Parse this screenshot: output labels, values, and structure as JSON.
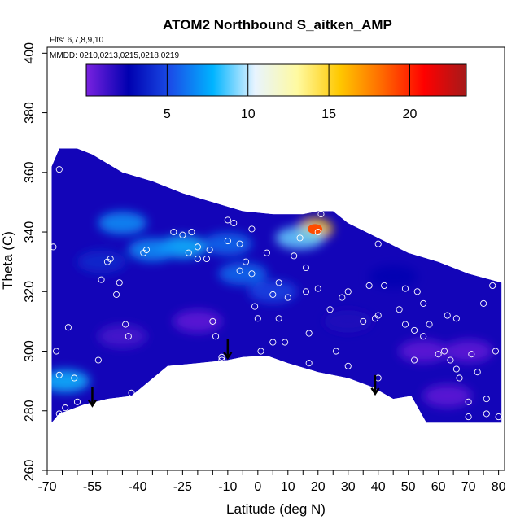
{
  "chart_data": {
    "type": "heatmap",
    "title": "ATOM2 Northbound S_aitken_AMP",
    "note_flights": "Flts: 6,7,8,9,10",
    "note_dates": "MMDD: 0210,0213,0215,0218,0219",
    "xlabel": "Latitude (deg N)",
    "ylabel": "Theta (C)",
    "xlim": [
      -70,
      82
    ],
    "ylim": [
      260,
      402
    ],
    "x_ticks": [
      -70,
      -55,
      -40,
      -25,
      -10,
      0,
      10,
      20,
      30,
      40,
      50,
      60,
      70,
      80
    ],
    "y_ticks": [
      260,
      280,
      300,
      320,
      340,
      360,
      380,
      400
    ],
    "colorbar": {
      "range": [
        0,
        23.5
      ],
      "ticks": [
        5,
        10,
        15,
        20
      ],
      "colors": [
        "#7a22e0",
        "#0000b0",
        "#1a4ee8",
        "#00b4ff",
        "#e8f4ff",
        "#fffaa0",
        "#ffc800",
        "#ff6a00",
        "#ff0000",
        "#a51a1a"
      ]
    },
    "envelope": {
      "top": [
        [
          -68.5,
          362
        ],
        [
          -66,
          368
        ],
        [
          -60,
          368
        ],
        [
          -55,
          366
        ],
        [
          -45,
          360
        ],
        [
          -35,
          357
        ],
        [
          -25,
          353
        ],
        [
          -15,
          350
        ],
        [
          -5,
          347
        ],
        [
          5,
          346
        ],
        [
          15,
          346
        ],
        [
          20,
          347
        ],
        [
          25,
          347
        ],
        [
          30,
          343
        ],
        [
          40,
          338
        ],
        [
          50,
          333
        ],
        [
          60,
          330
        ],
        [
          70,
          326
        ],
        [
          81,
          323
        ]
      ],
      "bottom": [
        [
          81,
          276
        ],
        [
          56,
          276
        ],
        [
          51,
          285
        ],
        [
          45,
          284
        ],
        [
          38,
          288
        ],
        [
          30,
          291
        ],
        [
          20,
          293
        ],
        [
          10,
          296
        ],
        [
          3,
          298.5
        ],
        [
          -5,
          298
        ],
        [
          -10,
          297
        ],
        [
          -20,
          296
        ],
        [
          -30,
          295
        ],
        [
          -42,
          285
        ],
        [
          -50,
          284
        ],
        [
          -58,
          282
        ],
        [
          -66,
          279
        ],
        [
          -68.5,
          276
        ]
      ]
    },
    "field_blobs": [
      {
        "lat": 19,
        "theta": 341,
        "value": 15.5
      },
      {
        "lat": 14,
        "theta": 338,
        "value": 9
      },
      {
        "lat": -25,
        "theta": 335,
        "value": 8
      },
      {
        "lat": -35,
        "theta": 334,
        "value": 7
      },
      {
        "lat": -10,
        "theta": 336,
        "value": 6
      },
      {
        "lat": -45,
        "theta": 343,
        "value": 7
      },
      {
        "lat": -64,
        "theta": 290,
        "value": 8
      },
      {
        "lat": -5,
        "theta": 326,
        "value": 6
      },
      {
        "lat": 5,
        "theta": 320,
        "value": 5
      },
      {
        "lat": -52,
        "theta": 330,
        "value": 4
      },
      {
        "lat": -20,
        "theta": 310,
        "value": 0.5
      },
      {
        "lat": 55,
        "theta": 300,
        "value": 0.5
      },
      {
        "lat": 70,
        "theta": 300,
        "value": 0.5
      },
      {
        "lat": 30,
        "theta": 310,
        "value": 2
      },
      {
        "lat": 63,
        "theta": 285,
        "value": 0.5
      },
      {
        "lat": -45,
        "theta": 305,
        "value": 1
      },
      {
        "lat": 45,
        "theta": 325,
        "value": 2.5
      }
    ],
    "samples": [
      [
        -66,
        361
      ],
      [
        -68,
        335
      ],
      [
        -67,
        300
      ],
      [
        -66,
        292
      ],
      [
        -61,
        291
      ],
      [
        -60,
        283
      ],
      [
        -64,
        281
      ],
      [
        -66,
        279
      ],
      [
        -63,
        308
      ],
      [
        -53,
        297
      ],
      [
        -52,
        324
      ],
      [
        -50,
        330
      ],
      [
        -49,
        331
      ],
      [
        -47,
        319
      ],
      [
        -46,
        323
      ],
      [
        -44,
        309
      ],
      [
        -43,
        305
      ],
      [
        -42,
        286
      ],
      [
        -38,
        333
      ],
      [
        -37,
        334
      ],
      [
        -28,
        340
      ],
      [
        -25,
        339
      ],
      [
        -22,
        340
      ],
      [
        -23,
        333
      ],
      [
        -20,
        335
      ],
      [
        -20,
        331
      ],
      [
        -17,
        331
      ],
      [
        -16,
        334
      ],
      [
        -15,
        310
      ],
      [
        -14,
        305
      ],
      [
        -12,
        297
      ],
      [
        -12,
        298
      ],
      [
        -10,
        344
      ],
      [
        -10,
        337
      ],
      [
        -8,
        343
      ],
      [
        -6,
        327
      ],
      [
        -6,
        336
      ],
      [
        -4,
        330
      ],
      [
        -2,
        341
      ],
      [
        -2,
        326
      ],
      [
        -1,
        315
      ],
      [
        0,
        311
      ],
      [
        1,
        300
      ],
      [
        3,
        333
      ],
      [
        5,
        319
      ],
      [
        5,
        303
      ],
      [
        7,
        323
      ],
      [
        7,
        311
      ],
      [
        9,
        303
      ],
      [
        10,
        318
      ],
      [
        12,
        332
      ],
      [
        14,
        338
      ],
      [
        16,
        328
      ],
      [
        16,
        320
      ],
      [
        17,
        306
      ],
      [
        17,
        296
      ],
      [
        20,
        340
      ],
      [
        21,
        346
      ],
      [
        20,
        321
      ],
      [
        24,
        314
      ],
      [
        26,
        300
      ],
      [
        28,
        318
      ],
      [
        30,
        295
      ],
      [
        30,
        320
      ],
      [
        35,
        310
      ],
      [
        37,
        322
      ],
      [
        39,
        311
      ],
      [
        40,
        312
      ],
      [
        40,
        291
      ],
      [
        40,
        336
      ],
      [
        42,
        322
      ],
      [
        47,
        314
      ],
      [
        49,
        309
      ],
      [
        49,
        321
      ],
      [
        52,
        307
      ],
      [
        52,
        297
      ],
      [
        53,
        320
      ],
      [
        55,
        316
      ],
      [
        55,
        305
      ],
      [
        57,
        309
      ],
      [
        60,
        299
      ],
      [
        62,
        300
      ],
      [
        63,
        312
      ],
      [
        64,
        297
      ],
      [
        66,
        311
      ],
      [
        66,
        294
      ],
      [
        67,
        291
      ],
      [
        70,
        278
      ],
      [
        70,
        283
      ],
      [
        71,
        299
      ],
      [
        73,
        293
      ],
      [
        75,
        316
      ],
      [
        76,
        284
      ],
      [
        76,
        279
      ],
      [
        78,
        322
      ],
      [
        79,
        300
      ],
      [
        80,
        278
      ]
    ],
    "arrows": [
      {
        "lat": -55,
        "theta_from": 288,
        "theta_to": 282
      },
      {
        "lat": -10,
        "theta_from": 304,
        "theta_to": 298
      },
      {
        "lat": 39,
        "theta_from": 292,
        "theta_to": 286
      }
    ]
  }
}
